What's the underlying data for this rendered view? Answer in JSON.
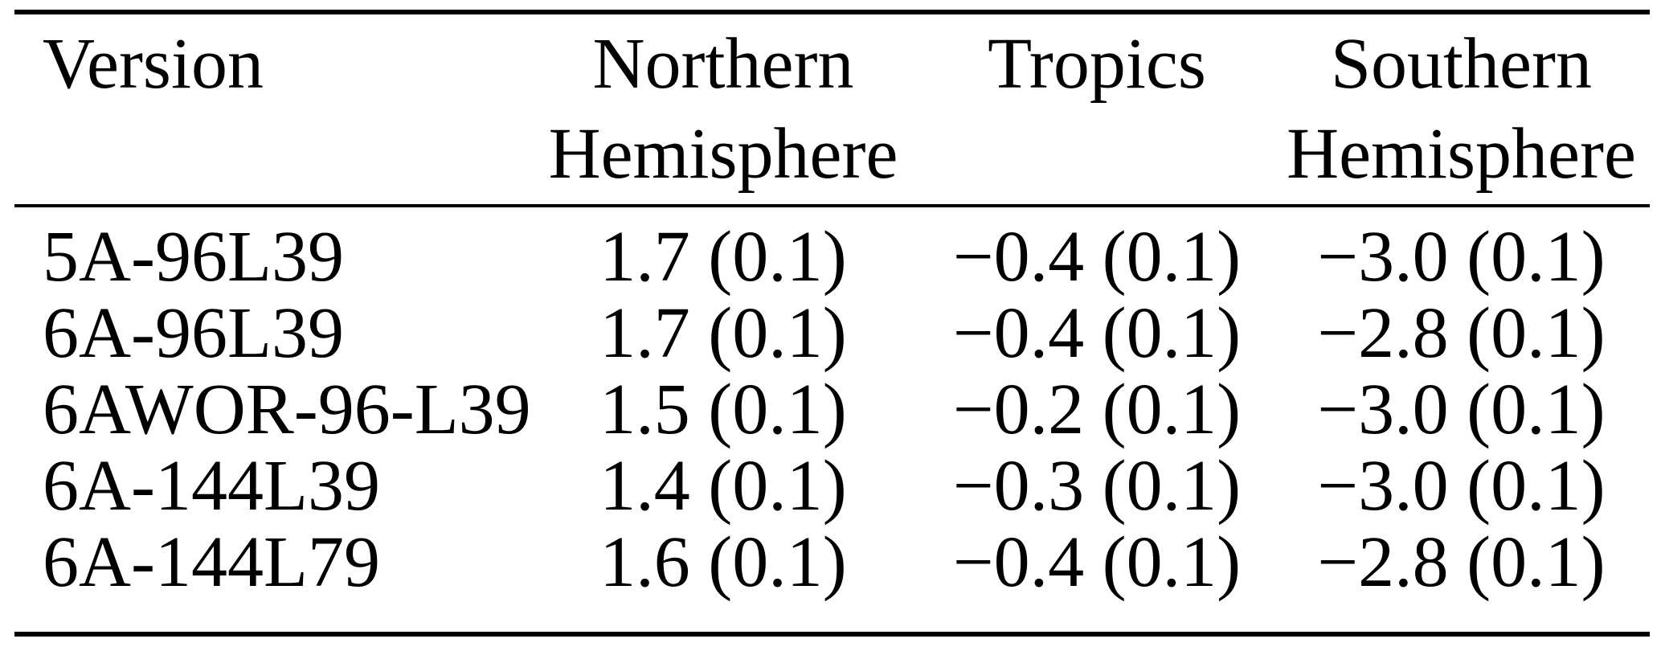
{
  "colors": {
    "background": "#ffffff",
    "text": "#000000",
    "rule": "#000000"
  },
  "table": {
    "headers": [
      {
        "label": "Version",
        "lines": [
          "Version"
        ]
      },
      {
        "label": "Northern Hemisphere",
        "lines": [
          "Northern",
          "Hemisphere"
        ]
      },
      {
        "label": "Tropics",
        "lines": [
          "Tropics"
        ]
      },
      {
        "label": "Southern Hemisphere",
        "lines": [
          "Southern",
          "Hemisphere"
        ]
      }
    ],
    "rows": [
      [
        "5A-96L39",
        "1.7 (0.1)",
        "−0.4 (0.1)",
        "−3.0 (0.1)"
      ],
      [
        "6A-96L39",
        "1.7 (0.1)",
        "−0.4 (0.1)",
        "−2.8 (0.1)"
      ],
      [
        "6AWOR-96-L39",
        "1.5 (0.1)",
        "−0.2 (0.1)",
        "−3.0 (0.1)"
      ],
      [
        "6A-144L39",
        "1.4 (0.1)",
        "−0.3 (0.1)",
        "−3.0 (0.1)"
      ],
      [
        "6A-144L79",
        "1.6 (0.1)",
        "−0.4 (0.1)",
        "−2.8 (0.1)"
      ]
    ]
  }
}
